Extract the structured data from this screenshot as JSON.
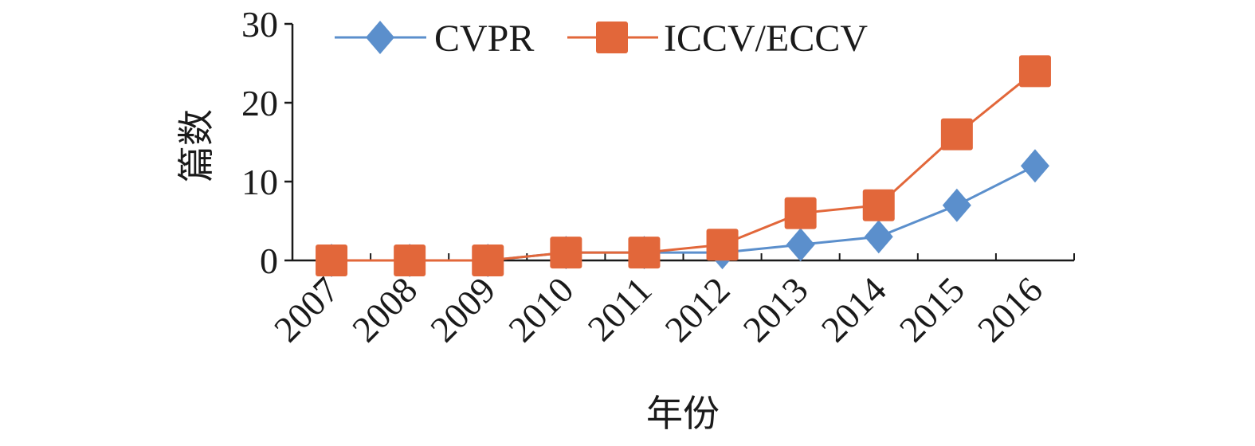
{
  "chart_data": {
    "type": "line",
    "title": "",
    "xlabel": "年份",
    "ylabel": "篇数",
    "categories": [
      "2007",
      "2008",
      "2009",
      "2010",
      "2011",
      "2012",
      "2013",
      "2014",
      "2015",
      "2016"
    ],
    "ylim": [
      0,
      30
    ],
    "yticks": [
      "0",
      "10",
      "20",
      "30"
    ],
    "grid": false,
    "legend_position": "top",
    "series": [
      {
        "name": "CVPR",
        "marker": "diamond",
        "color": "#5b8fcc",
        "values": [
          0,
          0,
          0,
          1,
          1,
          1,
          2,
          3,
          7,
          12
        ]
      },
      {
        "name": "ICCV/ECCV",
        "marker": "square",
        "color": "#e2673a",
        "values": [
          0,
          0,
          0,
          1,
          1,
          2,
          6,
          7,
          16,
          24
        ]
      }
    ]
  }
}
